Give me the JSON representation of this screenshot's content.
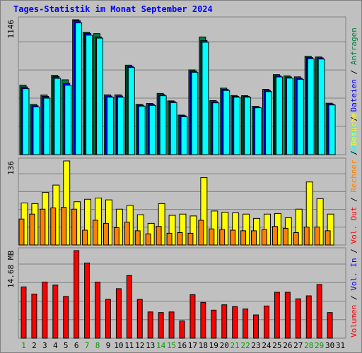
{
  "page": {
    "title": "Tages-Statistik im Monat September 2024"
  },
  "chart_data": {
    "type": "bar",
    "title": "Tages-Statistik im Monat September 2024",
    "days": [
      "1",
      "2",
      "3",
      "4",
      "5",
      "6",
      "7",
      "8",
      "9",
      "10",
      "11",
      "12",
      "13",
      "14",
      "15",
      "16",
      "17",
      "18",
      "19",
      "20",
      "21",
      "22",
      "23",
      "24",
      "25",
      "26",
      "27",
      "28",
      "29",
      "30",
      "31"
    ],
    "weekend_days": [
      "1",
      "7",
      "8",
      "14",
      "15",
      "21",
      "22",
      "28",
      "29"
    ],
    "panels": [
      {
        "name": "top",
        "max_label": "1146",
        "max": 1146,
        "series": [
          {
            "name": "Anfragen",
            "color": "#008040",
            "values": [
              590,
              427,
              507,
              674,
              636,
              1146,
              1040,
              1028,
              508,
              508,
              760,
              427,
              435,
              520,
              457,
              336,
              720,
              1000,
              459,
              565,
              502,
              501,
              410,
              555,
              680,
              669,
              661,
              836,
              830,
              437,
              0
            ]
          },
          {
            "name": "Dateien",
            "color": "#0000ff",
            "values": [
              575,
              415,
              495,
              663,
              605,
              1138,
              1030,
              1000,
              498,
              498,
              750,
              420,
              428,
              510,
              450,
              330,
              710,
              970,
              450,
              555,
              495,
              495,
              405,
              545,
              670,
              660,
              650,
              825,
              822,
              430,
              0
            ]
          },
          {
            "name": "Seiten",
            "color": "#00ffff",
            "values": [
              560,
              405,
              480,
              648,
              590,
              1120,
              1015,
              990,
              488,
              488,
              740,
              412,
              418,
              500,
              442,
              322,
              700,
              955,
              440,
              545,
              488,
              488,
              398,
              535,
              660,
              650,
              640,
              815,
              812,
              422,
              0
            ]
          }
        ]
      },
      {
        "name": "middle",
        "max_label": "136",
        "max": 136,
        "series": [
          {
            "name": "Besuche",
            "color": "#ffff00",
            "values": [
              68,
              67,
              85,
              97,
              136,
              70,
              74,
              76,
              73,
              58,
              64,
              49,
              35,
              67,
              48,
              50,
              47,
              109,
              55,
              53,
              52,
              50,
              43,
              50,
              51,
              44,
              58,
              102,
              75,
              50,
              0
            ]
          },
          {
            "name": "Rechner",
            "color": "#ff8000",
            "values": [
              42,
              50,
              58,
              60,
              61,
              58,
              24,
              40,
              35,
              28,
              37,
              23,
              18,
              30,
              19,
              20,
              19,
              40,
              26,
              25,
              24,
              23,
              23,
              25,
              30,
              27,
              20,
              29,
              29,
              23,
              0
            ]
          }
        ]
      },
      {
        "name": "bottom",
        "max_label": "14.68 MB",
        "max": 14.68,
        "series": [
          {
            "name": "Volumen",
            "color": "#ff0000",
            "values": [
              8.6,
              7.4,
              9.4,
              8.9,
              7.0,
              14.68,
              12.6,
              9.4,
              6.5,
              8.3,
              10.5,
              6.5,
              4.4,
              4.3,
              4.4,
              2.9,
              7.3,
              6.0,
              4.7,
              5.6,
              5.3,
              4.9,
              3.9,
              5.4,
              7.7,
              7.7,
              6.6,
              7.1,
              9.0,
              4.3,
              0
            ]
          }
        ]
      }
    ],
    "legend_right": [
      {
        "label": "Anfragen",
        "color": "#008040"
      },
      {
        "label": "Dateien",
        "color": "#0000ff"
      },
      {
        "label": "Seiten",
        "color": "#00ffff"
      },
      {
        "label": "Besuche",
        "color": "#ffff00"
      },
      {
        "label": "Rechner",
        "color": "#ff8000"
      },
      {
        "label": "Vol. Out",
        "color": "#ff0000"
      },
      {
        "label": "Vol. In",
        "color": "#0000ff"
      },
      {
        "label": "Volumen",
        "color": "#ff0000"
      }
    ],
    "separator": " / ",
    "legend_separator_color": "#000000",
    "colors": {
      "background": "#c0c0c0",
      "gridline": "#808080",
      "weekday_label": "#000000",
      "weekend_label": "#00a000"
    }
  }
}
